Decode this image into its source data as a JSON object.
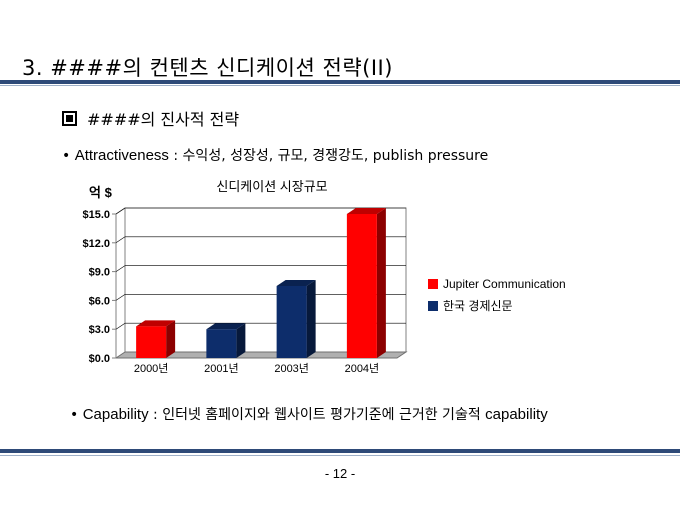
{
  "slide": {
    "title": "3. ####의 컨텐츠 신디케이션 전략(II)",
    "subheading": "####의 진사적 전략",
    "bullet1_key": "Attractiveness",
    "bullet1_rest": " : 수익성, 성장성, 규모, 경쟁강도, publish pressure",
    "bullet2_key": "Capability",
    "bullet2_rest": " : 인터넷 홈페이지와 웹사이트 평가기준에 근거한 기술적 ",
    "bullet2_tail": "capability",
    "page_number": "- 12 -"
  },
  "chart_data": {
    "type": "bar",
    "title": "신디케이션 시장규모",
    "unit_label": "억 $",
    "categories": [
      "2000년",
      "2001년",
      "2003년",
      "2004년"
    ],
    "y_ticks": [
      "$0.0",
      "$3.0",
      "$6.0",
      "$9.0",
      "$12.0",
      "$15.0"
    ],
    "ylim": [
      0,
      15
    ],
    "series": [
      {
        "name": "Jupiter Communication",
        "color": "#ff0000",
        "values": [
          3.3,
          null,
          null,
          15.0
        ]
      },
      {
        "name": "한국 경제신문",
        "color": "#0d2d6b",
        "values": [
          null,
          3.0,
          7.5,
          null
        ]
      }
    ],
    "legend_position": "right",
    "grid": true
  }
}
